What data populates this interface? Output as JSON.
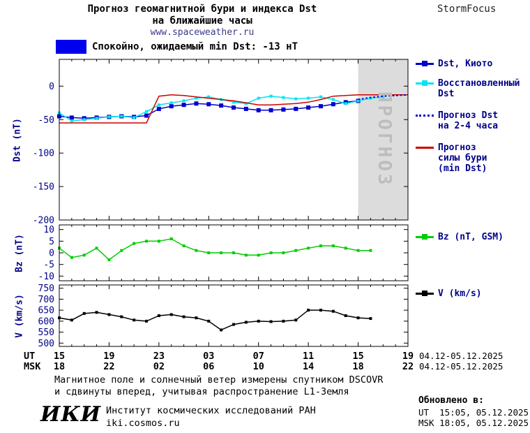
{
  "header": {
    "title_line1": "Прогноз геомагнитной бури и индекса Dst",
    "title_line2": "на ближайшие часы",
    "site": "www.spaceweather.ru",
    "brand": "StormFocus"
  },
  "status_badge": {
    "text": "Спокойно, ожидаемый min Dst: -13 нТ",
    "color": "#0000ee"
  },
  "watermark": "ПРОГНОЗ",
  "colors": {
    "axis_text": "#00008b",
    "x_tick_text": "#000000",
    "forecast_band": "#dcdcdc",
    "watermark": "#bdbdbd"
  },
  "axes": {
    "dst_label": "Dst (nT)",
    "bz_label": "Bz (nT)",
    "v_label": "V (km/s)"
  },
  "xaxis": {
    "ut_label": "UT",
    "msk_label": "MSK",
    "ut_ticks": [
      "15",
      "19",
      "23",
      "03",
      "07",
      "11",
      "15",
      "19"
    ],
    "msk_ticks": [
      "18",
      "22",
      "02",
      "06",
      "10",
      "14",
      "18",
      "22"
    ],
    "ut_right": "04.12-05.12.2025",
    "msk_right": "04.12-05.12.2025"
  },
  "legend": {
    "dst": [
      {
        "label_lines": [
          "Dst, Киото"
        ],
        "color": "#0000cd"
      },
      {
        "label_lines": [
          "Восстановленный",
          "Dst"
        ],
        "color": "#00e5ee"
      },
      {
        "label_lines": [
          "Прогноз Dst",
          "на 2-4 часа"
        ],
        "color": "#0000cd"
      },
      {
        "label_lines": [
          "Прогноз",
          "силы бури",
          "(min Dst)"
        ],
        "color": "#cd0000"
      }
    ],
    "bz": {
      "label": "Bz (nT, GSM)",
      "color": "#00cd00"
    },
    "v": {
      "label": "V (km/s)",
      "color": "#000000"
    }
  },
  "footer": {
    "note_line1": "Магнитное поле и солнечный ветер измерены спутником DSCOVR",
    "note_line2": "и сдвинуты вперед, учитывая распространение L1-Земля",
    "logo": "ИКИ",
    "org": "Институт космических исследований РАН",
    "org_site": "iki.cosmos.ru",
    "updated_label": "Обновлено в:",
    "updated_ut": "UT  15:05, 05.12.2025",
    "updated_msk": "MSK 18:05, 05.12.2025"
  },
  "chart_data": [
    {
      "type": "line",
      "name": "dst",
      "ylabel": "Dst (nT)",
      "ylim": [
        40,
        -200
      ],
      "yticks": [
        0,
        -50,
        -100,
        -150,
        -200
      ],
      "xlim": [
        15,
        43
      ],
      "xticks_hours": [
        15,
        19,
        23,
        27,
        31,
        35,
        39,
        43
      ],
      "forecast_band": [
        39,
        43
      ],
      "series": [
        {
          "name": "Dst, Киото",
          "color": "#0000cd",
          "marker": "square",
          "marker_size": 6,
          "width": 1.5,
          "x": [
            15,
            16,
            17,
            18,
            19,
            20,
            21,
            22,
            23,
            24,
            25,
            26,
            27,
            28,
            29,
            30,
            31,
            32,
            33,
            34,
            35,
            36,
            37,
            38,
            39
          ],
          "y": [
            -45,
            -47,
            -48,
            -47,
            -46,
            -45,
            -46,
            -44,
            -34,
            -30,
            -28,
            -26,
            -27,
            -29,
            -32,
            -34,
            -36,
            -36,
            -35,
            -34,
            -32,
            -30,
            -27,
            -24,
            -22
          ]
        },
        {
          "name": "Восстановленный Dst",
          "color": "#00e5ee",
          "marker": "square",
          "marker_size": 4,
          "width": 1.5,
          "x": [
            15,
            16,
            17,
            18,
            19,
            20,
            21,
            22,
            23,
            24,
            25,
            26,
            27,
            28,
            29,
            30,
            31,
            32,
            33,
            34,
            35,
            36,
            37,
            38,
            39,
            40,
            41
          ],
          "y": [
            -40,
            -52,
            -50,
            -48,
            -46,
            -45,
            -47,
            -38,
            -28,
            -25,
            -22,
            -18,
            -16,
            -20,
            -24,
            -26,
            -18,
            -15,
            -17,
            -19,
            -18,
            -16,
            -20,
            -26,
            -22,
            -18,
            -16
          ]
        },
        {
          "name": "Прогноз силы бури (min Dst)",
          "color": "#cd0000",
          "width": 1.5,
          "x": [
            15,
            16,
            17,
            18,
            19,
            20,
            21,
            22,
            23,
            24,
            25,
            26,
            27,
            28,
            29,
            30,
            31,
            32,
            33,
            34,
            35,
            36,
            37,
            38,
            39,
            40,
            41,
            42,
            43
          ],
          "y": [
            -55,
            -55,
            -55,
            -55,
            -55,
            -55,
            -55,
            -55,
            -15,
            -13,
            -14,
            -16,
            -18,
            -20,
            -22,
            -25,
            -28,
            -28,
            -27,
            -26,
            -24,
            -20,
            -15,
            -14,
            -13,
            -13,
            -13,
            -13,
            -13
          ]
        },
        {
          "name": "Прогноз Dst на 2-4 часа",
          "color": "#0000cd",
          "dash": true,
          "width": 2,
          "x": [
            39,
            40,
            41,
            42,
            43
          ],
          "y": [
            -20,
            -17,
            -15,
            -14,
            -13
          ]
        }
      ]
    },
    {
      "type": "line",
      "name": "bz",
      "ylabel": "Bz (nT)",
      "ylim": [
        12,
        -12
      ],
      "yticks": [
        10,
        5,
        0,
        -5,
        -10
      ],
      "xlim": [
        15,
        43
      ],
      "xticks_hours": [
        15,
        19,
        23,
        27,
        31,
        35,
        39,
        43
      ],
      "series": [
        {
          "name": "Bz (nT, GSM)",
          "color": "#00cd00",
          "marker": "square",
          "marker_size": 4,
          "width": 1.5,
          "x": [
            15,
            16,
            17,
            18,
            19,
            20,
            21,
            22,
            23,
            24,
            25,
            26,
            27,
            28,
            29,
            30,
            31,
            32,
            33,
            34,
            35,
            36,
            37,
            38,
            39,
            40
          ],
          "y": [
            2,
            -2,
            -1,
            2,
            -3,
            1,
            4,
            5,
            5,
            6,
            3,
            1,
            0,
            0,
            0,
            -1,
            -1,
            0,
            0,
            1,
            2,
            3,
            3,
            2,
            1,
            1
          ]
        }
      ]
    },
    {
      "type": "line",
      "name": "v",
      "ylabel": "V (km/s)",
      "ylim": [
        765,
        485
      ],
      "yticks": [
        750,
        700,
        650,
        600,
        550,
        500
      ],
      "xlim": [
        15,
        43
      ],
      "xticks_hours": [
        15,
        19,
        23,
        27,
        31,
        35,
        39,
        43
      ],
      "series": [
        {
          "name": "V (km/s)",
          "color": "#000000",
          "marker": "square",
          "marker_size": 4,
          "width": 1.5,
          "x": [
            15,
            16,
            17,
            18,
            19,
            20,
            21,
            22,
            23,
            24,
            25,
            26,
            27,
            28,
            29,
            30,
            31,
            32,
            33,
            34,
            35,
            36,
            37,
            38,
            39,
            40
          ],
          "y": [
            615,
            605,
            635,
            640,
            630,
            620,
            605,
            600,
            625,
            630,
            620,
            615,
            600,
            560,
            585,
            595,
            600,
            598,
            600,
            605,
            650,
            650,
            645,
            625,
            615,
            612
          ]
        }
      ]
    }
  ]
}
